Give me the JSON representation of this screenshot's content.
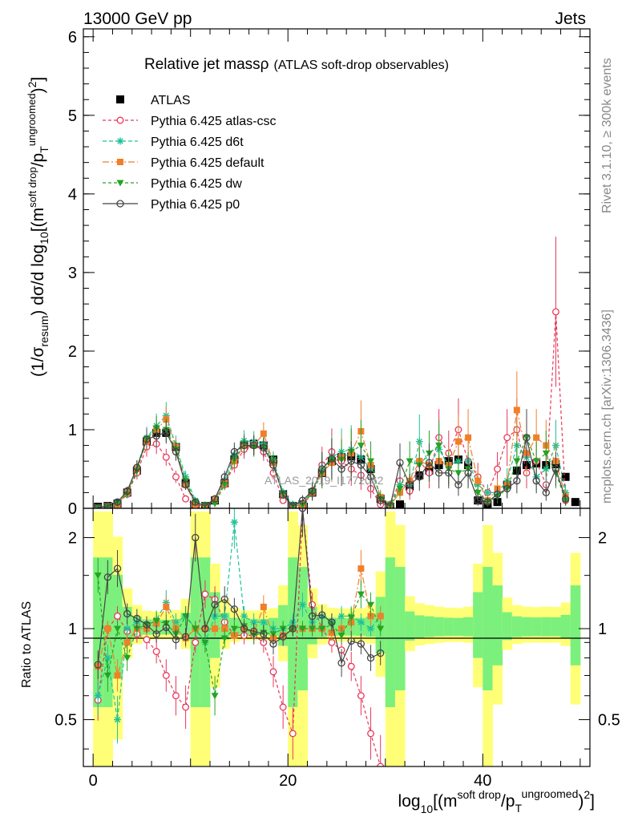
{
  "header": {
    "left": "13000 GeV pp",
    "right": "Jets"
  },
  "side_labels": {
    "rivet": "Rivet 3.1.10, ≥ 300k events",
    "mcplots": "mcplots.cern.ch [arXiv:1306.3436]"
  },
  "watermark": "ATLAS_2019_I1772062",
  "colors": {
    "ATLAS": "#000000",
    "atlas_csc": "#e8375a",
    "d6t": "#1ec29a",
    "default": "#f07f2a",
    "dw": "#25a325",
    "p0": "#444444",
    "band_yellow": "#ffff77",
    "band_green": "#7cf07c"
  },
  "chart_data": [
    {
      "type": "scatter",
      "title": "Relative jet mass",
      "title_symbol": "ρ",
      "subtitle": "(ATLAS soft-drop observables)",
      "ylabel": "(1/σresum) dσ/d log10[(m^soft drop/pT^ungroomed)^2]",
      "ylabel_parts": {
        "a": "(1/σ",
        "a_sub": "resum",
        "b": ") dσ/d log",
        "b_sub": "10",
        "c": "[(m",
        "c_sup": "soft drop",
        "d": "/p",
        "d_sub": "T",
        "d_sup": "ungroomed",
        "e": ")",
        "e_sup": "2",
        "f": "]"
      },
      "xlim": [
        -1,
        51
      ],
      "ylim": [
        0,
        6.1
      ],
      "yticks": [
        0,
        1,
        2,
        3,
        4,
        5,
        6
      ],
      "legend": [
        "ATLAS",
        "Pythia 6.425 atlas-csc",
        "Pythia 6.425 d6t",
        "Pythia 6.425 default",
        "Pythia 6.425 dw",
        "Pythia 6.425 p0"
      ],
      "series": [
        {
          "name": "ATLAS",
          "x": [
            0.5,
            1.5,
            2.5,
            3.5,
            4.5,
            5.5,
            6.5,
            7.5,
            8.5,
            9.5,
            10.5,
            11.5,
            12.5,
            13.5,
            14.5,
            15.5,
            16.5,
            17.5,
            18.5,
            19.5,
            20.5,
            21.5,
            22.5,
            23.5,
            24.5,
            25.5,
            26.5,
            27.5,
            28.5,
            29.5,
            30.5,
            31.5,
            32.5,
            33.5,
            34.5,
            35.5,
            36.5,
            37.5,
            38.5,
            39.5,
            40.5,
            41.5,
            42.5,
            43.5,
            44.5,
            45.5,
            46.5,
            47.5,
            48.5,
            49.5
          ],
          "values": [
            0.02,
            0.03,
            0.06,
            0.2,
            0.48,
            0.85,
            0.96,
            0.96,
            0.78,
            0.32,
            0.04,
            0.03,
            0.1,
            0.32,
            0.62,
            0.8,
            0.82,
            0.8,
            0.62,
            0.18,
            0.03,
            0.05,
            0.2,
            0.45,
            0.6,
            0.65,
            0.66,
            0.62,
            0.5,
            0.12,
            0.02,
            0.05,
            0.28,
            0.42,
            0.48,
            0.55,
            0.6,
            0.62,
            0.55,
            0.1,
            0.05,
            0.08,
            0.3,
            0.48,
            0.55,
            0.57,
            0.55,
            0.56,
            0.4,
            0.08
          ]
        },
        {
          "name": "Pythia 6.425 atlas-csc",
          "x": [
            0.5,
            1.5,
            2.5,
            3.5,
            4.5,
            5.5,
            6.5,
            7.5,
            8.5,
            9.5,
            10.5,
            11.5,
            12.5,
            13.5,
            14.5,
            15.5,
            16.5,
            17.5,
            18.5,
            19.5,
            20.5,
            21.5,
            22.5,
            23.5,
            24.5,
            25.5,
            26.5,
            27.5,
            28.5,
            29.5,
            30.5,
            31.5,
            32.5,
            33.5,
            34.5,
            35.5,
            36.5,
            37.5,
            38.5,
            39.5,
            40.5,
            41.5,
            42.5,
            43.5,
            44.5,
            45.5,
            46.5,
            47.5,
            48.5
          ],
          "values": [
            0.01,
            0.03,
            0.05,
            0.18,
            0.45,
            0.78,
            0.82,
            0.65,
            0.4,
            0.12,
            0.03,
            0.04,
            0.12,
            0.3,
            0.55,
            0.75,
            0.82,
            0.72,
            0.45,
            0.1,
            0.02,
            0.03,
            0.2,
            0.55,
            0.72,
            0.6,
            0.5,
            0.42,
            0.25,
            0.05,
            0.05,
            0.35,
            0.22,
            0.6,
            0.45,
            0.9,
            0.7,
            1.0,
            0.6,
            0.4,
            0.2,
            0.5,
            0.9,
            1.0,
            0.45,
            0.6,
            0.3,
            2.5,
            0.1
          ]
        },
        {
          "name": "Pythia 6.425 d6t",
          "x": [
            0.5,
            1.5,
            2.5,
            3.5,
            4.5,
            5.5,
            6.5,
            7.5,
            8.5,
            9.5,
            10.5,
            11.5,
            12.5,
            13.5,
            14.5,
            15.5,
            16.5,
            17.5,
            18.5,
            19.5,
            20.5,
            21.5,
            22.5,
            23.5,
            24.5,
            25.5,
            26.5,
            27.5,
            28.5,
            29.5,
            30.5,
            31.5,
            32.5,
            33.5,
            34.5,
            35.5,
            36.5,
            37.5,
            38.5,
            39.5,
            40.5,
            41.5,
            42.5,
            43.5,
            44.5,
            45.5,
            46.5,
            47.5,
            48.5
          ],
          "values": [
            0.01,
            0.03,
            0.07,
            0.22,
            0.52,
            0.9,
            1.05,
            1.18,
            0.8,
            0.4,
            0.1,
            0.04,
            0.1,
            0.35,
            0.68,
            0.86,
            0.85,
            0.82,
            0.62,
            0.2,
            0.05,
            0.06,
            0.22,
            0.5,
            0.65,
            0.72,
            0.75,
            0.65,
            0.5,
            0.15,
            0.05,
            0.3,
            0.3,
            0.85,
            0.55,
            0.75,
            0.55,
            0.6,
            0.6,
            0.3,
            0.2,
            0.2,
            0.35,
            0.8,
            0.65,
            0.4,
            0.5,
            0.8,
            0.2
          ]
        },
        {
          "name": "Pythia 6.425 default",
          "x": [
            0.5,
            1.5,
            2.5,
            3.5,
            4.5,
            5.5,
            6.5,
            7.5,
            8.5,
            9.5,
            10.5,
            11.5,
            12.5,
            13.5,
            14.5,
            15.5,
            16.5,
            17.5,
            18.5,
            19.5,
            20.5,
            21.5,
            22.5,
            23.5,
            24.5,
            25.5,
            26.5,
            27.5,
            28.5,
            29.5,
            30.5,
            31.5,
            32.5,
            33.5,
            34.5,
            35.5,
            36.5,
            37.5,
            38.5,
            39.5,
            40.5,
            41.5,
            42.5,
            43.5,
            44.5,
            45.5,
            46.5,
            47.5,
            48.5
          ],
          "values": [
            0.01,
            0.03,
            0.05,
            0.2,
            0.5,
            0.85,
            1.0,
            1.13,
            0.78,
            0.3,
            0.05,
            0.03,
            0.1,
            0.32,
            0.6,
            0.8,
            0.8,
            0.95,
            0.58,
            0.17,
            0.03,
            0.05,
            0.2,
            0.45,
            0.58,
            0.65,
            0.7,
            0.98,
            0.55,
            0.14,
            0.04,
            0.2,
            0.35,
            0.6,
            0.55,
            0.6,
            0.55,
            0.85,
            0.9,
            0.35,
            0.1,
            0.25,
            0.3,
            1.25,
            0.7,
            0.9,
            0.8,
            0.6,
            0.15
          ]
        },
        {
          "name": "Pythia 6.425 dw",
          "x": [
            0.5,
            1.5,
            2.5,
            3.5,
            4.5,
            5.5,
            6.5,
            7.5,
            8.5,
            9.5,
            10.5,
            11.5,
            12.5,
            13.5,
            14.5,
            15.5,
            16.5,
            17.5,
            18.5,
            19.5,
            20.5,
            21.5,
            22.5,
            23.5,
            24.5,
            25.5,
            26.5,
            27.5,
            28.5,
            29.5,
            30.5,
            31.5,
            32.5,
            33.5,
            34.5,
            35.5,
            36.5,
            37.5,
            38.5,
            39.5,
            40.5,
            41.5,
            42.5,
            43.5,
            44.5,
            45.5,
            46.5,
            47.5,
            48.5
          ],
          "values": [
            0.01,
            0.02,
            0.06,
            0.18,
            0.48,
            0.88,
            1.02,
            1.0,
            0.75,
            0.35,
            0.08,
            0.04,
            0.06,
            0.3,
            0.62,
            0.82,
            0.78,
            0.78,
            0.6,
            0.18,
            0.03,
            0.04,
            0.2,
            0.45,
            0.62,
            0.62,
            0.72,
            0.8,
            0.6,
            0.12,
            0.04,
            0.25,
            0.6,
            0.55,
            0.7,
            0.8,
            0.5,
            0.45,
            0.5,
            0.2,
            0.08,
            0.15,
            0.25,
            0.6,
            0.9,
            0.6,
            0.7,
            0.45,
            0.1
          ]
        },
        {
          "name": "Pythia 6.425 p0",
          "x": [
            0.5,
            1.5,
            2.5,
            3.5,
            4.5,
            5.5,
            6.5,
            7.5,
            8.5,
            9.5,
            10.5,
            11.5,
            12.5,
            13.5,
            14.5,
            15.5,
            16.5,
            17.5,
            18.5,
            19.5,
            20.5,
            21.5,
            22.5,
            23.5,
            24.5,
            25.5,
            26.5,
            27.5,
            28.5,
            29.5,
            30.5,
            31.5,
            32.5,
            33.5,
            34.5,
            35.5,
            36.5,
            37.5,
            38.5,
            39.5,
            40.5,
            41.5,
            42.5,
            43.5,
            44.5,
            45.5,
            46.5,
            47.5,
            48.5
          ],
          "values": [
            0.01,
            0.03,
            0.08,
            0.22,
            0.52,
            0.88,
            0.92,
            0.97,
            0.72,
            0.3,
            0.08,
            0.03,
            0.12,
            0.4,
            0.72,
            0.8,
            0.8,
            0.77,
            0.55,
            0.17,
            0.03,
            0.1,
            0.22,
            0.5,
            0.63,
            0.5,
            0.6,
            0.55,
            0.4,
            0.1,
            0.03,
            0.58,
            0.3,
            0.4,
            0.58,
            0.45,
            0.45,
            0.3,
            0.45,
            0.1,
            0.08,
            0.18,
            0.25,
            0.35,
            0.9,
            0.35,
            0.2,
            0.5,
            0.12
          ]
        }
      ]
    },
    {
      "type": "scatter",
      "ylabel": "Ratio to ATLAS",
      "xlabel": "log10[(m^soft drop/pT^ungroomed)^2]",
      "xlabel_parts": {
        "a": "log",
        "a_sub": "10",
        "b": "[(m",
        "b_sup": "soft drop",
        "c": "/p",
        "c_sub": "T",
        "c_sup": "ungroomed",
        "d": ")",
        "d_sup": "2",
        "e": "]"
      },
      "xlim": [
        -1,
        51
      ],
      "ylim": [
        0.35,
        2.5
      ],
      "yscale": "log",
      "yticks": [
        0.5,
        1,
        2
      ],
      "xticks": [
        0,
        20,
        40
      ],
      "reference_line": 1,
      "series": [
        {
          "name": "Pythia 6.425 atlas-csc",
          "x": [
            0.5,
            1.5,
            2.5,
            3.5,
            4.5,
            5.5,
            6.5,
            7.5,
            8.5,
            9.5,
            10.5,
            11.5,
            12.5,
            13.5,
            14.5,
            15.5,
            16.5,
            17.5,
            18.5,
            19.5,
            20.5,
            21.5,
            22.5,
            23.5,
            24.5,
            25.5,
            26.5,
            27.5,
            28.5,
            29.5
          ],
          "values": [
            0.58,
            1.0,
            1.1,
            0.98,
            0.96,
            0.92,
            0.84,
            0.7,
            0.6,
            0.55,
            0.9,
            1.3,
            1.25,
            1.05,
            0.95,
            0.95,
            0.95,
            0.9,
            0.72,
            0.55,
            0.45,
            2.5,
            1.2,
            1.0,
            0.9,
            0.85,
            0.75,
            0.6,
            0.45,
            0.35
          ]
        },
        {
          "name": "Pythia 6.425 d6t",
          "x": [
            0.5,
            1.5,
            2.5,
            3.5,
            4.5,
            5.5,
            6.5,
            7.5,
            8.5,
            9.5,
            10.5,
            11.5,
            12.5,
            13.5,
            14.5,
            15.5,
            16.5,
            17.5,
            18.5,
            19.5,
            20.5,
            21.5,
            22.5,
            23.5,
            24.5,
            25.5,
            26.5,
            27.5,
            28.5,
            29.5
          ],
          "values": [
            0.6,
            0.8,
            0.5,
            1.0,
            1.05,
            1.0,
            1.07,
            1.22,
            1.05,
            1.1,
            1.0,
            0.9,
            1.1,
            1.1,
            2.25,
            1.1,
            1.05,
            1.05,
            1.0,
            1.0,
            1.05,
            1.2,
            1.05,
            1.1,
            1.05,
            1.1,
            1.1,
            1.05,
            1.0,
            1.1
          ]
        },
        {
          "name": "Pythia 6.425 default",
          "x": [
            0.5,
            1.5,
            2.5,
            3.5,
            4.5,
            5.5,
            6.5,
            7.5,
            8.5,
            9.5,
            10.5,
            11.5,
            12.5,
            13.5,
            14.5,
            15.5,
            16.5,
            17.5,
            18.5,
            19.5,
            20.5,
            21.5,
            22.5,
            23.5,
            24.5,
            25.5,
            26.5,
            27.5,
            28.5,
            29.5
          ],
          "values": [
            0.75,
            1.0,
            0.7,
            0.9,
            1.0,
            1.0,
            1.04,
            1.18,
            1.0,
            0.93,
            1.0,
            1.0,
            1.0,
            1.0,
            0.95,
            1.0,
            0.97,
            1.18,
            0.93,
            0.95,
            1.0,
            1.0,
            1.0,
            1.0,
            0.97,
            1.0,
            1.05,
            1.58,
            1.1,
            1.1
          ]
        },
        {
          "name": "Pythia 6.425 dw",
          "x": [
            0.5,
            1.5,
            2.5,
            3.5,
            4.5,
            5.5,
            6.5,
            7.5,
            8.5,
            9.5,
            10.5,
            11.5,
            12.5,
            13.5,
            14.5,
            15.5,
            16.5,
            17.5,
            18.5,
            19.5,
            20.5,
            21.5,
            22.5,
            23.5,
            24.5,
            25.5,
            26.5,
            27.5,
            28.5,
            29.5
          ],
          "values": [
            1.5,
            0.7,
            1.0,
            0.8,
            1.0,
            1.03,
            1.06,
            1.04,
            0.96,
            1.1,
            1.0,
            0.9,
            0.6,
            0.93,
            1.0,
            1.02,
            0.95,
            0.97,
            0.96,
            1.0,
            1.0,
            1.0,
            1.0,
            1.0,
            1.03,
            0.95,
            1.09,
            1.3,
            1.2,
            1.0
          ]
        },
        {
          "name": "Pythia 6.425 p0",
          "x": [
            0.5,
            1.5,
            2.5,
            3.5,
            4.5,
            5.5,
            6.5,
            7.5,
            8.5,
            9.5,
            10.5,
            11.5,
            12.5,
            13.5,
            14.5,
            15.5,
            16.5,
            17.5,
            18.5,
            19.5,
            20.5,
            21.5,
            22.5,
            23.5,
            24.5,
            25.5,
            26.5,
            27.5,
            28.5,
            29.5
          ],
          "values": [
            0.76,
            1.48,
            1.58,
            1.12,
            1.08,
            1.03,
            0.96,
            1.01,
            0.92,
            0.94,
            2.0,
            1.0,
            1.2,
            1.25,
            1.16,
            1.0,
            0.98,
            0.96,
            0.89,
            0.94,
            1.0,
            2.5,
            1.1,
            1.11,
            1.05,
            0.77,
            0.91,
            0.89,
            0.8,
            0.83
          ]
        }
      ]
    }
  ]
}
